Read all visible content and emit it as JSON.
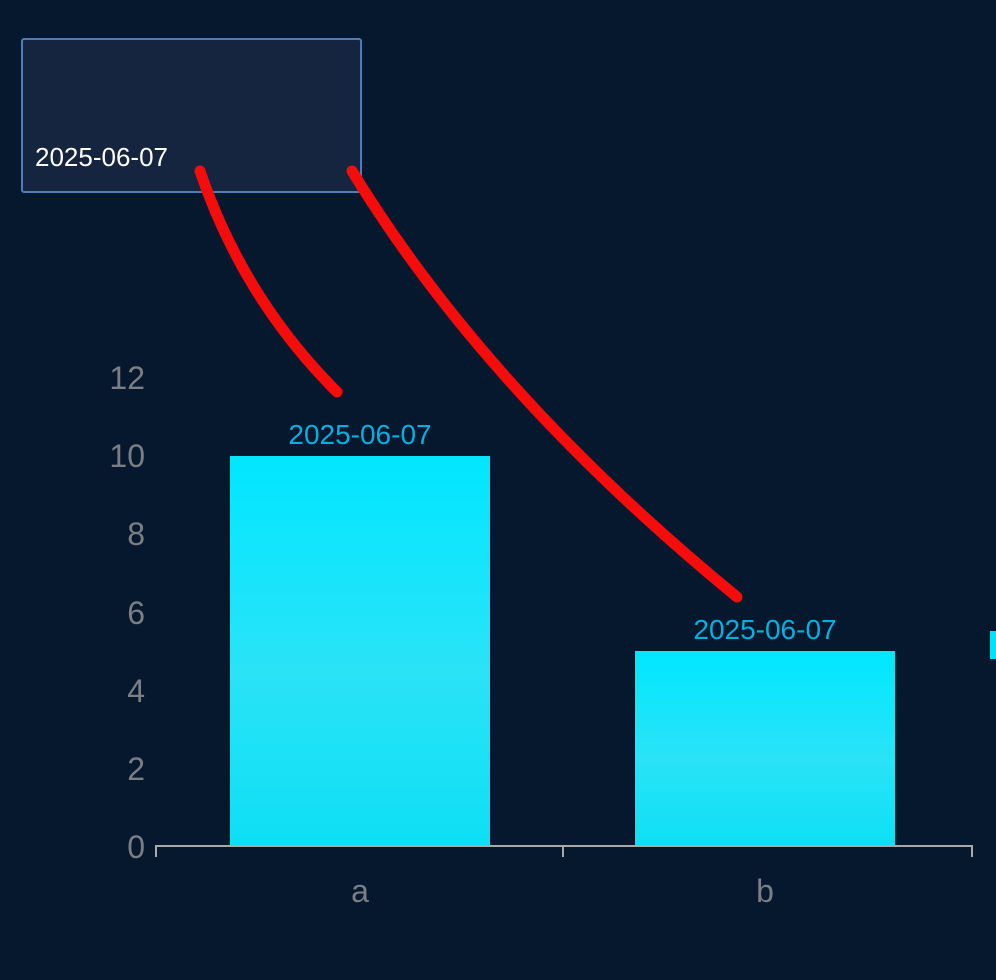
{
  "tooltip": {
    "text": "2025-06-07"
  },
  "chart_data": {
    "type": "bar",
    "title": "",
    "xlabel": "",
    "ylabel": "",
    "categories": [
      "a",
      "b"
    ],
    "values": [
      10,
      5
    ],
    "bar_labels": [
      "2025-06-07",
      "2025-06-07"
    ],
    "ytick_labels": [
      "12",
      "10",
      "8",
      "6",
      "4",
      "2",
      "0"
    ],
    "yticks": [
      0,
      2,
      4,
      6,
      8,
      10,
      12
    ],
    "ylim": [
      0,
      12
    ],
    "grid": false,
    "legend_position": "right-edge-cutoff"
  },
  "annotations": {
    "count": 2,
    "description": "hand-drawn red strokes from tooltip box toward each bar label"
  },
  "colors": {
    "background": "#06182e",
    "bar_fill_top": "#00e7ff",
    "bar_fill_bottom": "#0edff4",
    "bar_label_text": "#00b0e0",
    "axis_text": "#7b7e83",
    "axis_line": "#a9a9a9",
    "tooltip_background": "#15243f",
    "tooltip_border": "#4d7cb7",
    "tooltip_text": "#ffffff",
    "annotation_stroke": "#f70c0c",
    "legend_swatch": "#00e2f8"
  }
}
